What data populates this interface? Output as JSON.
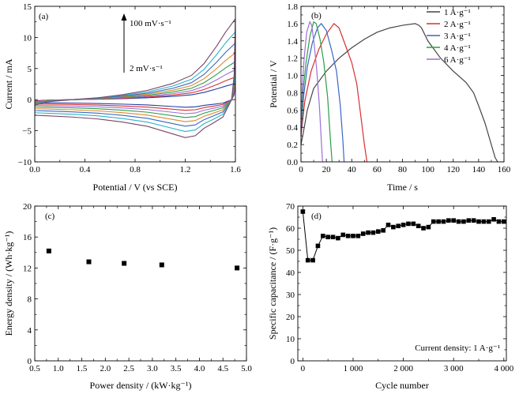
{
  "chart_data": [
    {
      "panel": "(a)",
      "type": "line",
      "xlabel": "Potential / V (vs SCE)",
      "ylabel": "Current / mA",
      "xlim": [
        0,
        1.6
      ],
      "ylim": [
        -10,
        15
      ],
      "xticks": [
        "0.0",
        "0.4",
        "0.8",
        "1.2",
        "1.6"
      ],
      "yticks": [
        "−10",
        "−5",
        "0",
        "5",
        "10",
        "15"
      ],
      "annotation_top": "100 mV·s⁻¹",
      "annotation_bottom": "2 mV·s⁻¹",
      "series": [
        {
          "scale": 0.2,
          "color": "#1f3fa8"
        },
        {
          "scale": 0.28,
          "color": "#d93030"
        },
        {
          "scale": 0.37,
          "color": "#9b6fd6"
        },
        {
          "scale": 0.47,
          "color": "#2a9d4a"
        },
        {
          "scale": 0.58,
          "color": "#e0892a"
        },
        {
          "scale": 0.7,
          "color": "#3a66c4"
        },
        {
          "scale": 0.84,
          "color": "#2bb3c6"
        },
        {
          "scale": 1.0,
          "color": "#7a4466"
        }
      ],
      "curve_max_scan": {
        "anodic": [
          [
            0.0,
            -0.9
          ],
          [
            0.1,
            -0.35
          ],
          [
            0.3,
            0.0
          ],
          [
            0.5,
            0.3
          ],
          [
            0.7,
            0.8
          ],
          [
            0.9,
            1.5
          ],
          [
            1.1,
            2.6
          ],
          [
            1.25,
            3.9
          ],
          [
            1.35,
            5.8
          ],
          [
            1.45,
            8.6
          ],
          [
            1.52,
            10.8
          ],
          [
            1.6,
            13.0
          ]
        ],
        "cathodic": [
          [
            1.6,
            13.0
          ],
          [
            1.59,
            4.0
          ],
          [
            1.57,
            0.0
          ],
          [
            1.5,
            -2.8
          ],
          [
            1.42,
            -3.8
          ],
          [
            1.35,
            -4.6
          ],
          [
            1.28,
            -5.8
          ],
          [
            1.2,
            -6.1
          ],
          [
            1.1,
            -5.5
          ],
          [
            0.9,
            -4.3
          ],
          [
            0.7,
            -3.6
          ],
          [
            0.5,
            -3.1
          ],
          [
            0.3,
            -2.8
          ],
          [
            0.1,
            -2.6
          ],
          [
            0.0,
            -2.5
          ]
        ]
      }
    },
    {
      "panel": "(b)",
      "type": "line",
      "xlabel": "Time / s",
      "ylabel": "Potential / V",
      "xlim": [
        0,
        160
      ],
      "ylim": [
        0,
        1.8
      ],
      "xticks": [
        "0",
        "20",
        "40",
        "60",
        "80",
        "100",
        "120",
        "140",
        "160"
      ],
      "yticks": [
        "0.0",
        "0.2",
        "0.4",
        "0.6",
        "0.8",
        "1.0",
        "1.2",
        "1.4",
        "1.6",
        "1.8"
      ],
      "series": [
        {
          "name": "1 A·g⁻¹",
          "color": "#444444",
          "x": [
            0,
            2,
            5,
            10,
            20,
            30,
            40,
            50,
            60,
            70,
            80,
            90,
            93,
            95,
            100,
            110,
            120,
            130,
            136,
            140,
            145,
            150,
            153,
            155
          ],
          "y": [
            0.2,
            0.35,
            0.6,
            0.85,
            1.05,
            1.2,
            1.32,
            1.42,
            1.5,
            1.55,
            1.58,
            1.6,
            1.58,
            1.55,
            1.4,
            1.2,
            1.05,
            0.92,
            0.8,
            0.65,
            0.45,
            0.2,
            0.05,
            0
          ]
        },
        {
          "name": "2 A·g⁻¹",
          "color": "#d93030",
          "x": [
            0,
            3,
            8,
            14,
            20,
            26,
            30,
            35,
            40,
            44,
            47,
            50,
            52
          ],
          "y": [
            0.3,
            0.7,
            1.05,
            1.3,
            1.48,
            1.6,
            1.55,
            1.35,
            1.15,
            0.9,
            0.55,
            0.2,
            0
          ]
        },
        {
          "name": "3 A·g⁻¹",
          "color": "#3a66c4",
          "x": [
            0,
            2,
            5,
            9,
            13,
            16,
            20,
            24,
            28,
            31,
            33,
            34
          ],
          "y": [
            0.3,
            0.75,
            1.1,
            1.38,
            1.55,
            1.6,
            1.52,
            1.3,
            1.05,
            0.65,
            0.25,
            0
          ]
        },
        {
          "name": "4 A·g⁻¹",
          "color": "#2a9d4a",
          "x": [
            0,
            1.5,
            4,
            7,
            10,
            12,
            15,
            18,
            21,
            23,
            24.5
          ],
          "y": [
            0.35,
            0.8,
            1.15,
            1.45,
            1.62,
            1.6,
            1.42,
            1.15,
            0.75,
            0.3,
            0
          ]
        },
        {
          "name": "6 A·g⁻¹",
          "color": "#9b6fd6",
          "x": [
            0,
            1,
            2.5,
            4.5,
            7,
            8.5,
            10.5,
            12.5,
            14.5,
            16,
            17
          ],
          "y": [
            0.4,
            0.85,
            1.2,
            1.5,
            1.62,
            1.58,
            1.35,
            1.05,
            0.65,
            0.25,
            0
          ]
        }
      ]
    },
    {
      "panel": "(c)",
      "type": "scatter",
      "xlabel": "Power density / (kW·kg⁻¹)",
      "ylabel": "Energy density / (Wh·kg⁻¹)",
      "xlim": [
        0.5,
        5.0
      ],
      "ylim": [
        0,
        20
      ],
      "xticks": [
        "0.5",
        "1.0",
        "1.5",
        "2.0",
        "2.5",
        "3.0",
        "3.5",
        "4.0",
        "4.5",
        "5.0"
      ],
      "yticks": [
        "0",
        "4",
        "8",
        "12",
        "16",
        "20"
      ],
      "x": [
        0.8,
        1.65,
        2.4,
        3.2,
        4.8
      ],
      "y": [
        14.2,
        12.8,
        12.6,
        12.4,
        12.0
      ]
    },
    {
      "panel": "(d)",
      "type": "line",
      "xlabel": "Cycle number",
      "ylabel": "Specific capacitance / (F·g⁻¹)",
      "annotation": "Current density: 1 A·g⁻¹",
      "xlim": [
        -100,
        4050
      ],
      "ylim": [
        0,
        70
      ],
      "xticks": [
        "0",
        "1 000",
        "2 000",
        "3 000",
        "4 000"
      ],
      "yticks": [
        "0",
        "10",
        "20",
        "30",
        "40",
        "50",
        "60",
        "70"
      ],
      "x": [
        0,
        100,
        200,
        300,
        400,
        500,
        600,
        700,
        800,
        900,
        1000,
        1100,
        1200,
        1300,
        1400,
        1500,
        1600,
        1700,
        1800,
        1900,
        2000,
        2100,
        2200,
        2300,
        2400,
        2500,
        2600,
        2700,
        2800,
        2900,
        3000,
        3100,
        3200,
        3300,
        3400,
        3500,
        3600,
        3700,
        3800,
        3900,
        4000
      ],
      "y": [
        67.5,
        45.5,
        45.5,
        52,
        56.5,
        56,
        56,
        55.5,
        57,
        56.5,
        56.5,
        56.5,
        57.5,
        58,
        58,
        58.5,
        59,
        61.5,
        60.5,
        61,
        61.5,
        62,
        62,
        61,
        60,
        60.5,
        63,
        63,
        63,
        63.5,
        63.5,
        63,
        63,
        63.5,
        63.5,
        63,
        63,
        63,
        64,
        63,
        63
      ]
    }
  ]
}
